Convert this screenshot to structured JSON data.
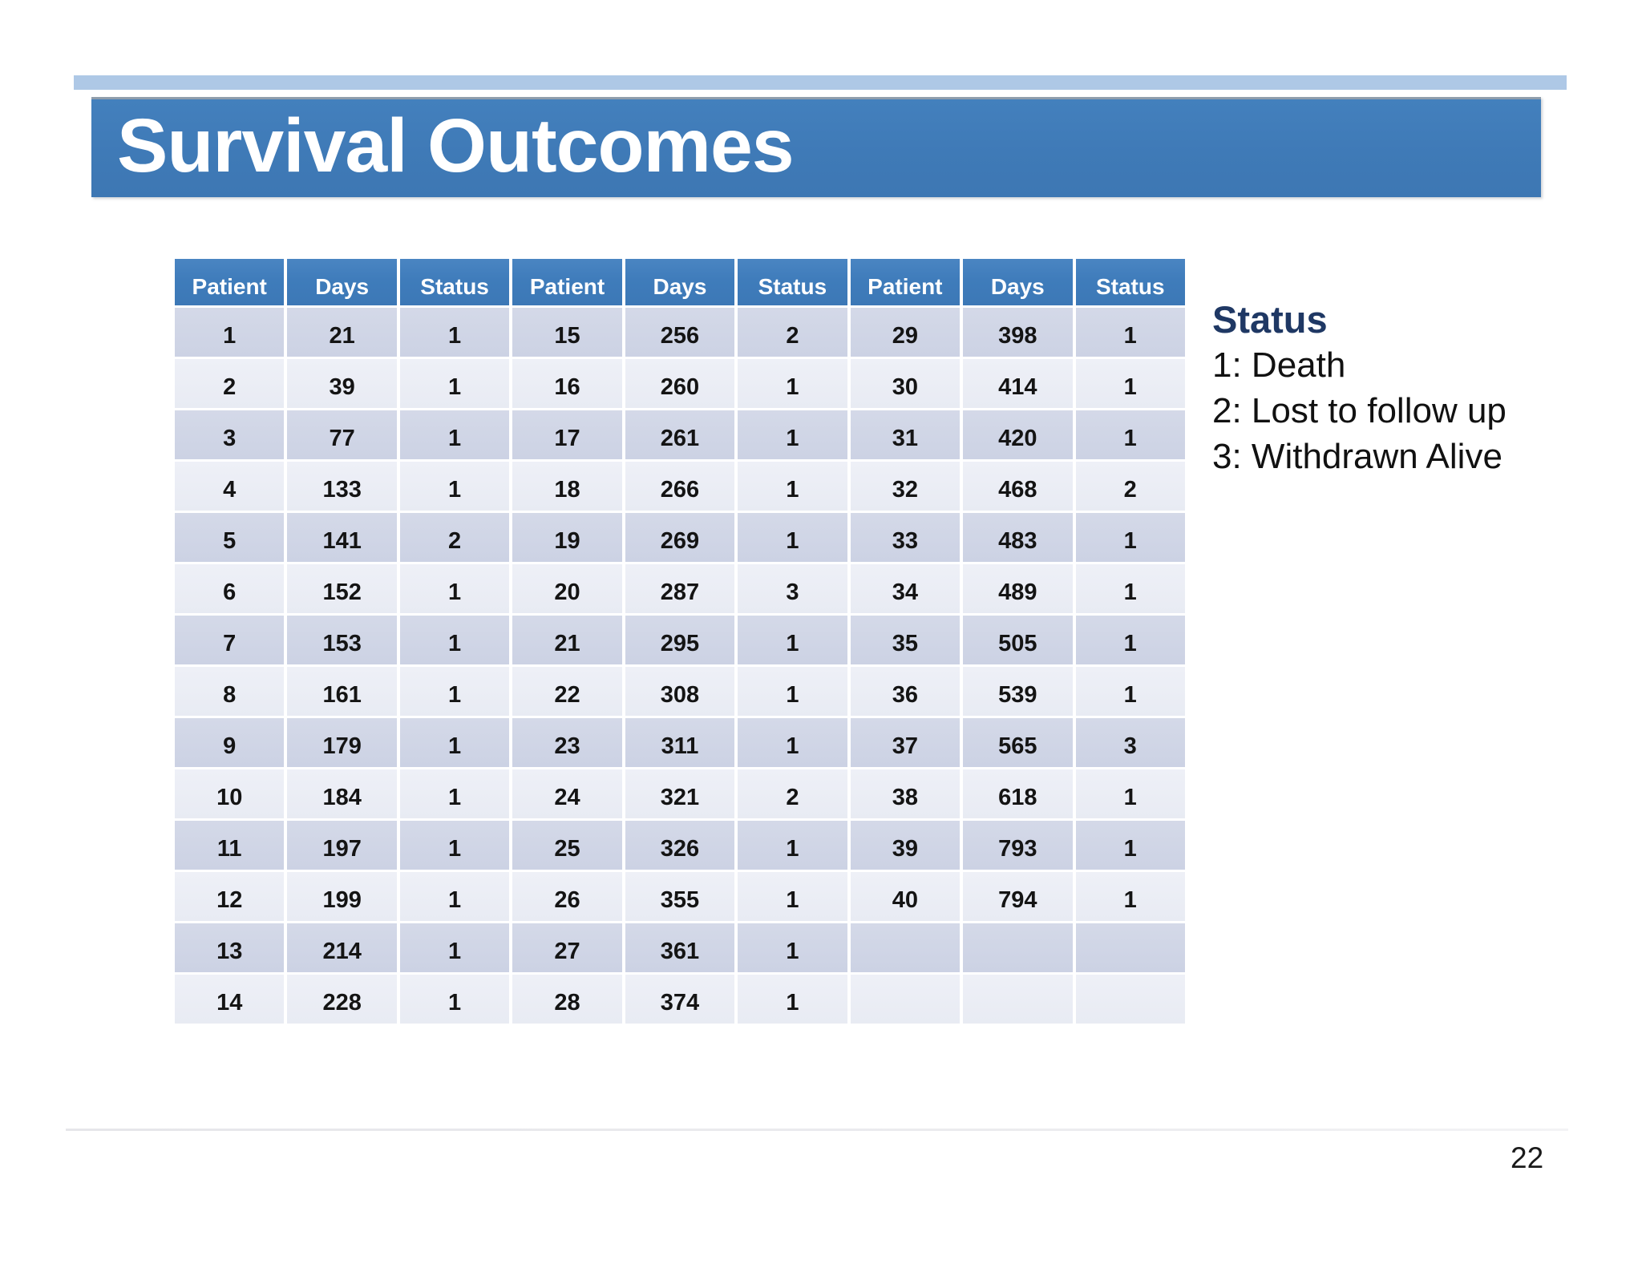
{
  "slide": {
    "title": "Survival Outcomes",
    "page_number": "22"
  },
  "table": {
    "column_headers": [
      "Patient",
      "Days",
      "Status"
    ],
    "header_repeat": 3,
    "rows": [
      [
        "1",
        "21",
        "1",
        "15",
        "256",
        "2",
        "29",
        "398",
        "1"
      ],
      [
        "2",
        "39",
        "1",
        "16",
        "260",
        "1",
        "30",
        "414",
        "1"
      ],
      [
        "3",
        "77",
        "1",
        "17",
        "261",
        "1",
        "31",
        "420",
        "1"
      ],
      [
        "4",
        "133",
        "1",
        "18",
        "266",
        "1",
        "32",
        "468",
        "2"
      ],
      [
        "5",
        "141",
        "2",
        "19",
        "269",
        "1",
        "33",
        "483",
        "1"
      ],
      [
        "6",
        "152",
        "1",
        "20",
        "287",
        "3",
        "34",
        "489",
        "1"
      ],
      [
        "7",
        "153",
        "1",
        "21",
        "295",
        "1",
        "35",
        "505",
        "1"
      ],
      [
        "8",
        "161",
        "1",
        "22",
        "308",
        "1",
        "36",
        "539",
        "1"
      ],
      [
        "9",
        "179",
        "1",
        "23",
        "311",
        "1",
        "37",
        "565",
        "3"
      ],
      [
        "10",
        "184",
        "1",
        "24",
        "321",
        "2",
        "38",
        "618",
        "1"
      ],
      [
        "11",
        "197",
        "1",
        "25",
        "326",
        "1",
        "39",
        "793",
        "1"
      ],
      [
        "12",
        "199",
        "1",
        "26",
        "355",
        "1",
        "40",
        "794",
        "1"
      ],
      [
        "13",
        "214",
        "1",
        "27",
        "361",
        "1",
        "",
        "",
        ""
      ],
      [
        "14",
        "228",
        "1",
        "28",
        "374",
        "1",
        "",
        "",
        ""
      ]
    ]
  },
  "legend": {
    "title": "Status",
    "items": [
      "1: Death",
      "2: Lost to follow up",
      "3: Withdrawn Alive"
    ]
  },
  "colors": {
    "banner_blue": "#3f7ab7",
    "accent_bar_light_blue": "#aec8e6",
    "table_header_blue": "#3f7cbb",
    "row_dark": "#ccd2e4",
    "row_light": "#e8ebf3",
    "legend_title_navy": "#1f3864",
    "title_text": "#ffffff",
    "body_text": "#141414"
  }
}
